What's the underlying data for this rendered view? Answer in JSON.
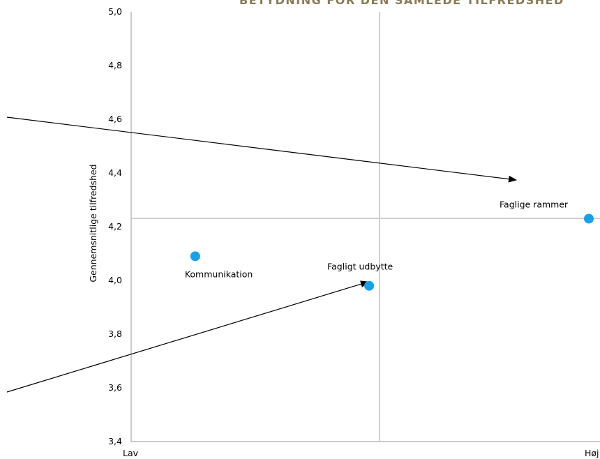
{
  "chart_data": {
    "type": "scatter",
    "title": "BETYDNING FOR DEN SAMLEDE TILFREDSHED",
    "ylabel": "Gennemsnitlige tilfredshed",
    "ylim": [
      3.4,
      5.0
    ],
    "yticks": [
      "3,4",
      "3,6",
      "3,8",
      "4,0",
      "4,2",
      "4,4",
      "4,6",
      "4,8",
      "5,0"
    ],
    "xtick_labels": [
      "Lav",
      "Høj"
    ],
    "grid": {
      "x_reference": 0.5,
      "y_reference": 4.2
    },
    "points": [
      {
        "label": "Kommunikation",
        "x": 0.14,
        "y": 4.09
      },
      {
        "label": "Fagligt udbytte",
        "x": 0.52,
        "y": 3.98
      },
      {
        "label": "Faglige rammer",
        "x": 1.0,
        "y": 4.23
      }
    ],
    "point_color": "#1aa0e6"
  }
}
